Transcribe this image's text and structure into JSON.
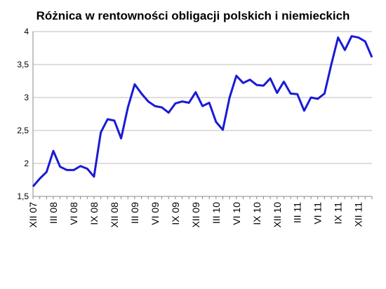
{
  "chart_data": {
    "type": "line",
    "title": "Różnica w rentowności obligacji polskich i niemieckich",
    "categories": [
      "XII 07",
      null,
      null,
      "III 08",
      null,
      null,
      "VI 08",
      null,
      null,
      "IX 08",
      null,
      null,
      "XII 08",
      null,
      null,
      "III 09",
      null,
      null,
      "VI 09",
      null,
      null,
      "IX 09",
      null,
      null,
      "XII 09",
      null,
      null,
      "III 10",
      null,
      null,
      "VI 10",
      null,
      null,
      "IX 10",
      null,
      null,
      "XII 10",
      null,
      null,
      "III 11",
      null,
      null,
      "VI 11",
      null,
      null,
      "IX 11",
      null,
      null,
      "XII 11",
      null,
      null
    ],
    "series": [
      {
        "name": null,
        "color": "#1a1ad6",
        "values": [
          1.65,
          1.77,
          1.87,
          2.19,
          1.95,
          1.9,
          1.9,
          1.96,
          1.92,
          1.8,
          2.47,
          2.67,
          2.65,
          2.38,
          2.85,
          3.2,
          3.06,
          2.94,
          2.87,
          2.85,
          2.77,
          2.91,
          2.94,
          2.92,
          3.08,
          2.87,
          2.92,
          2.63,
          2.51,
          3.0,
          3.33,
          3.22,
          3.27,
          3.19,
          3.18,
          3.29,
          3.07,
          3.24,
          3.06,
          3.05,
          2.8,
          3.0,
          2.98,
          3.06,
          3.5,
          3.91,
          3.72,
          3.93,
          3.91,
          3.85,
          3.61
        ]
      }
    ],
    "ylim": [
      1.5,
      4
    ],
    "yticks": [
      {
        "value": 1.5,
        "label": "1,5"
      },
      2,
      {
        "value": 2.5,
        "label": "2,5"
      },
      3,
      {
        "value": 3.5,
        "label": "3,5"
      },
      4
    ],
    "grid": true
  }
}
